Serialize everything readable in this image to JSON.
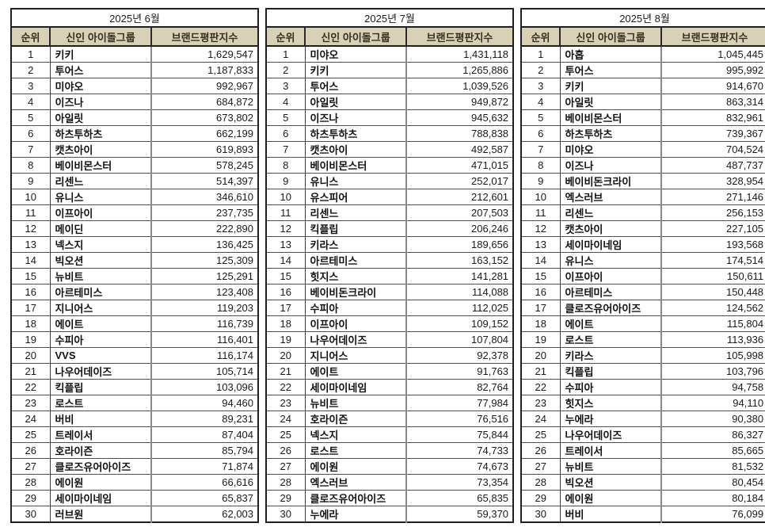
{
  "columns": [
    "순위",
    "신인 아이돌그룹",
    "브랜드평판지수"
  ],
  "colors": {
    "header_bg": "#d8d1b5",
    "header_text": "#35301f",
    "outer_border": "#1f1f1f",
    "grid_line": "#4f4f4f",
    "page_bg": "#ffffff"
  },
  "chart_data": [
    {
      "type": "table",
      "title": "2025년 6월",
      "columns": [
        "순위",
        "신인 아이돌그룹",
        "브랜드평판지수"
      ],
      "rows": [
        [
          "1",
          "키키",
          "1,629,547"
        ],
        [
          "2",
          "투어스",
          "1,187,833"
        ],
        [
          "3",
          "미야오",
          "992,967"
        ],
        [
          "4",
          "이즈나",
          "684,872"
        ],
        [
          "5",
          "아일릿",
          "673,802"
        ],
        [
          "6",
          "하츠투하츠",
          "662,199"
        ],
        [
          "7",
          "캣츠아이",
          "619,893"
        ],
        [
          "8",
          "베이비몬스터",
          "578,245"
        ],
        [
          "9",
          "리센느",
          "514,397"
        ],
        [
          "10",
          "유니스",
          "346,610"
        ],
        [
          "11",
          "이프아이",
          "237,735"
        ],
        [
          "12",
          "메이딘",
          "222,890"
        ],
        [
          "13",
          "넥스지",
          "136,425"
        ],
        [
          "14",
          "빅오션",
          "125,309"
        ],
        [
          "15",
          "뉴비트",
          "125,291"
        ],
        [
          "16",
          "아르테미스",
          "123,408"
        ],
        [
          "17",
          "지니어스",
          "119,203"
        ],
        [
          "18",
          "에이트",
          "116,739"
        ],
        [
          "19",
          "수피아",
          "116,401"
        ],
        [
          "20",
          "VVS",
          "116,174"
        ],
        [
          "21",
          "나우어데이즈",
          "105,714"
        ],
        [
          "22",
          "킥플립",
          "103,096"
        ],
        [
          "23",
          "로스트",
          "94,460"
        ],
        [
          "24",
          "버비",
          "89,231"
        ],
        [
          "25",
          "트레이서",
          "87,404"
        ],
        [
          "26",
          "호라이즌",
          "85,794"
        ],
        [
          "27",
          "클로즈유어아이즈",
          "71,874"
        ],
        [
          "28",
          "에이원",
          "66,616"
        ],
        [
          "29",
          "세이마이네임",
          "65,837"
        ],
        [
          "30",
          "러브원",
          "62,003"
        ]
      ]
    },
    {
      "type": "table",
      "title": "2025년 7월",
      "columns": [
        "순위",
        "신인 아이돌그룹",
        "브랜드평판지수"
      ],
      "rows": [
        [
          "1",
          "미야오",
          "1,431,118"
        ],
        [
          "2",
          "키키",
          "1,265,886"
        ],
        [
          "3",
          "투어스",
          "1,039,526"
        ],
        [
          "4",
          "아일릿",
          "949,872"
        ],
        [
          "5",
          "이즈나",
          "945,632"
        ],
        [
          "6",
          "하츠투하츠",
          "788,838"
        ],
        [
          "7",
          "캣츠아이",
          "492,587"
        ],
        [
          "8",
          "베이비몬스터",
          "471,015"
        ],
        [
          "9",
          "유니스",
          "252,017"
        ],
        [
          "10",
          "유스피어",
          "212,601"
        ],
        [
          "11",
          "리센느",
          "207,503"
        ],
        [
          "12",
          "킥플립",
          "206,246"
        ],
        [
          "13",
          "키라스",
          "189,656"
        ],
        [
          "14",
          "아르테미스",
          "163,152"
        ],
        [
          "15",
          "힛지스",
          "141,281"
        ],
        [
          "16",
          "베이비돈크라이",
          "114,088"
        ],
        [
          "17",
          "수피아",
          "112,025"
        ],
        [
          "18",
          "이프아이",
          "109,152"
        ],
        [
          "19",
          "나우어데이즈",
          "107,804"
        ],
        [
          "20",
          "지니어스",
          "92,378"
        ],
        [
          "21",
          "에이트",
          "91,763"
        ],
        [
          "22",
          "세이마이네임",
          "82,764"
        ],
        [
          "23",
          "뉴비트",
          "77,984"
        ],
        [
          "24",
          "호라이즌",
          "76,516"
        ],
        [
          "25",
          "넥스지",
          "75,844"
        ],
        [
          "26",
          "로스트",
          "74,733"
        ],
        [
          "27",
          "에이원",
          "74,673"
        ],
        [
          "28",
          "엑스러브",
          "73,354"
        ],
        [
          "29",
          "클로즈유어아이즈",
          "65,835"
        ],
        [
          "30",
          "누에라",
          "59,370"
        ]
      ]
    },
    {
      "type": "table",
      "title": "2025년 8월",
      "columns": [
        "순위",
        "신인 아이돌그룹",
        "브랜드평판지수"
      ],
      "rows": [
        [
          "1",
          "아홉",
          "1,045,445"
        ],
        [
          "2",
          "투어스",
          "995,992"
        ],
        [
          "3",
          "키키",
          "914,670"
        ],
        [
          "4",
          "아일릿",
          "863,314"
        ],
        [
          "5",
          "베이비몬스터",
          "832,961"
        ],
        [
          "6",
          "하츠투하츠",
          "739,367"
        ],
        [
          "7",
          "미야오",
          "704,524"
        ],
        [
          "8",
          "이즈나",
          "487,737"
        ],
        [
          "9",
          "베이비돈크라이",
          "328,954"
        ],
        [
          "10",
          "엑스러브",
          "271,146"
        ],
        [
          "11",
          "리센느",
          "256,153"
        ],
        [
          "12",
          "캣츠아이",
          "227,105"
        ],
        [
          "13",
          "세이마이네임",
          "193,568"
        ],
        [
          "14",
          "유니스",
          "174,514"
        ],
        [
          "15",
          "이프아이",
          "150,611"
        ],
        [
          "16",
          "아르테미스",
          "150,448"
        ],
        [
          "17",
          "클로즈유어아이즈",
          "124,562"
        ],
        [
          "18",
          "에이트",
          "115,804"
        ],
        [
          "19",
          "로스트",
          "113,936"
        ],
        [
          "20",
          "키라스",
          "105,998"
        ],
        [
          "21",
          "킥플립",
          "103,796"
        ],
        [
          "22",
          "수피아",
          "94,758"
        ],
        [
          "23",
          "힛지스",
          "94,110"
        ],
        [
          "24",
          "누에라",
          "90,380"
        ],
        [
          "25",
          "나우어데이즈",
          "86,327"
        ],
        [
          "26",
          "트레이서",
          "85,665"
        ],
        [
          "27",
          "뉴비트",
          "81,532"
        ],
        [
          "28",
          "빅오션",
          "80,454"
        ],
        [
          "29",
          "에이원",
          "80,184"
        ],
        [
          "30",
          "버비",
          "76,099"
        ]
      ]
    }
  ]
}
